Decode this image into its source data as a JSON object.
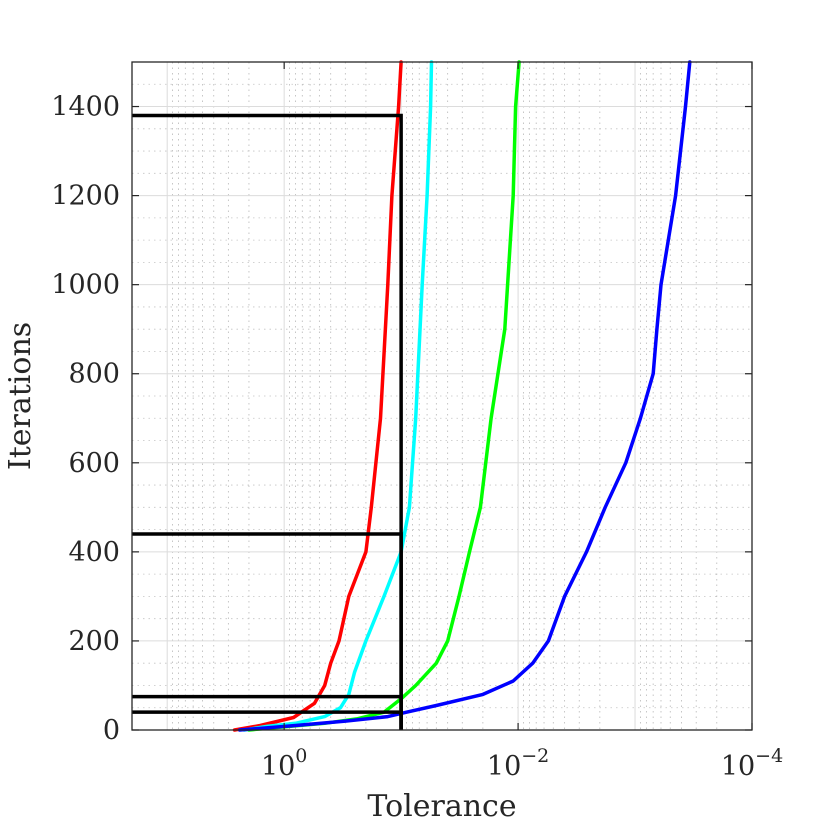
{
  "chart_data": {
    "type": "line",
    "xlabel": "Tolerance",
    "ylabel": "Iterations",
    "x_scale": "log",
    "x_reversed": true,
    "xlim": [
      20,
      0.0001
    ],
    "ylim": [
      0,
      1500
    ],
    "grid": true,
    "minor_grid": true,
    "x_ticks": [
      {
        "value": 1,
        "base": "10",
        "exp": "0"
      },
      {
        "value": 0.01,
        "base": "10",
        "exp": "−2"
      },
      {
        "value": 0.0001,
        "base": "10",
        "exp": "−4"
      }
    ],
    "y_ticks": [
      {
        "value": 0,
        "label": "0"
      },
      {
        "value": 200,
        "label": "200"
      },
      {
        "value": 400,
        "label": "400"
      },
      {
        "value": 600,
        "label": "600"
      },
      {
        "value": 800,
        "label": "800"
      },
      {
        "value": 1000,
        "label": "1000"
      },
      {
        "value": 1200,
        "label": "1200"
      },
      {
        "value": 1400,
        "label": "1400"
      }
    ],
    "series": [
      {
        "name": "red",
        "color": "#ff0000",
        "points": [
          [
            2.66,
            0
          ],
          [
            1.6,
            10
          ],
          [
            0.83,
            28
          ],
          [
            0.55,
            60
          ],
          [
            0.45,
            100
          ],
          [
            0.4,
            150
          ],
          [
            0.34,
            200
          ],
          [
            0.28,
            300
          ],
          [
            0.2,
            400
          ],
          [
            0.18,
            500
          ],
          [
            0.15,
            700
          ],
          [
            0.13,
            1000
          ],
          [
            0.12,
            1200
          ],
          [
            0.105,
            1400
          ],
          [
            0.1,
            1500
          ]
        ]
      },
      {
        "name": "cyan",
        "color": "#00ffff",
        "points": [
          [
            2.2,
            0
          ],
          [
            1.4,
            8
          ],
          [
            0.8,
            15
          ],
          [
            0.45,
            30
          ],
          [
            0.33,
            50
          ],
          [
            0.28,
            80
          ],
          [
            0.25,
            130
          ],
          [
            0.2,
            200
          ],
          [
            0.14,
            300
          ],
          [
            0.1,
            400
          ],
          [
            0.085,
            500
          ],
          [
            0.075,
            700
          ],
          [
            0.066,
            1000
          ],
          [
            0.06,
            1200
          ],
          [
            0.056,
            1400
          ],
          [
            0.055,
            1500
          ]
        ]
      },
      {
        "name": "green",
        "color": "#00ff00",
        "points": [
          [
            2.0,
            0
          ],
          [
            0.9,
            8
          ],
          [
            0.45,
            15
          ],
          [
            0.24,
            25
          ],
          [
            0.14,
            40
          ],
          [
            0.1,
            70
          ],
          [
            0.075,
            100
          ],
          [
            0.05,
            150
          ],
          [
            0.04,
            200
          ],
          [
            0.032,
            300
          ],
          [
            0.026,
            400
          ],
          [
            0.021,
            500
          ],
          [
            0.017,
            700
          ],
          [
            0.013,
            900
          ],
          [
            0.011,
            1200
          ],
          [
            0.0105,
            1400
          ],
          [
            0.0098,
            1500
          ]
        ]
      },
      {
        "name": "blue",
        "color": "#0000ff",
        "points": [
          [
            2.4,
            0
          ],
          [
            0.8,
            10
          ],
          [
            0.3,
            20
          ],
          [
            0.13,
            30
          ],
          [
            0.09,
            40
          ],
          [
            0.05,
            55
          ],
          [
            0.02,
            80
          ],
          [
            0.011,
            110
          ],
          [
            0.0075,
            150
          ],
          [
            0.0055,
            200
          ],
          [
            0.004,
            300
          ],
          [
            0.0026,
            400
          ],
          [
            0.0018,
            500
          ],
          [
            0.0012,
            600
          ],
          [
            0.0009,
            700
          ],
          [
            0.0007,
            800
          ],
          [
            0.00065,
            900
          ],
          [
            0.0006,
            1000
          ],
          [
            0.00045,
            1200
          ],
          [
            0.00037,
            1400
          ],
          [
            0.00034,
            1500
          ]
        ]
      }
    ],
    "reference_lines": [
      {
        "x": 0.1,
        "y": 1380
      },
      {
        "x": 0.1,
        "y": 440
      },
      {
        "x": 0.1,
        "y": 75
      },
      {
        "x": 0.1,
        "y": 40
      }
    ]
  }
}
